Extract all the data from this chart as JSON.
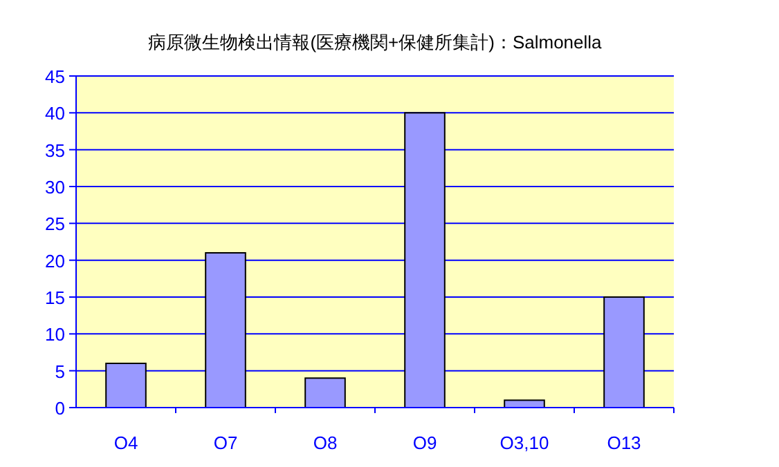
{
  "chart_data": {
    "type": "bar",
    "title": "病原微生物検出情報(医療機関+保健所集計)：Salmonella",
    "categories": [
      "O4",
      "O7",
      "O8",
      "O9",
      "O3,10",
      "O13"
    ],
    "values": [
      6,
      21,
      4,
      40,
      1,
      15
    ],
    "color": "#9999ff",
    "ylim": [
      0,
      45
    ],
    "yticks": [
      0,
      5,
      10,
      15,
      20,
      25,
      30,
      35,
      40,
      45
    ],
    "grid": "y"
  }
}
